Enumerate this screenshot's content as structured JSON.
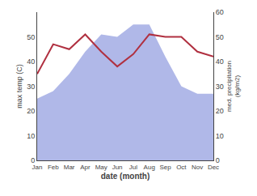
{
  "chart_data": {
    "type": "line",
    "categories": [
      "Jan",
      "Feb",
      "Mar",
      "Apr",
      "May",
      "Jun",
      "Jul",
      "Aug",
      "Sep",
      "Oct",
      "Nov",
      "Dec"
    ],
    "series": [
      {
        "type": "area",
        "color": "#b0b8e8",
        "values": [
          25,
          28,
          35,
          44,
          51,
          50,
          55,
          55,
          42,
          30,
          27,
          27
        ]
      },
      {
        "type": "line",
        "color": "#b03040",
        "values": [
          35,
          47,
          45,
          51,
          44,
          38,
          43,
          51,
          50,
          50,
          44,
          42
        ]
      }
    ],
    "xlabel": "date (month)",
    "ylabel": "max temp (C)",
    "y2label": "med. precipitation\n(kg/m2)",
    "ylim": [
      0,
      60
    ],
    "yticks": [
      0,
      10,
      20,
      30,
      40,
      50
    ],
    "y2lim": [
      0,
      60
    ],
    "y2ticks": [
      0,
      10,
      20,
      30,
      40,
      50,
      60
    ],
    "grid": false
  }
}
